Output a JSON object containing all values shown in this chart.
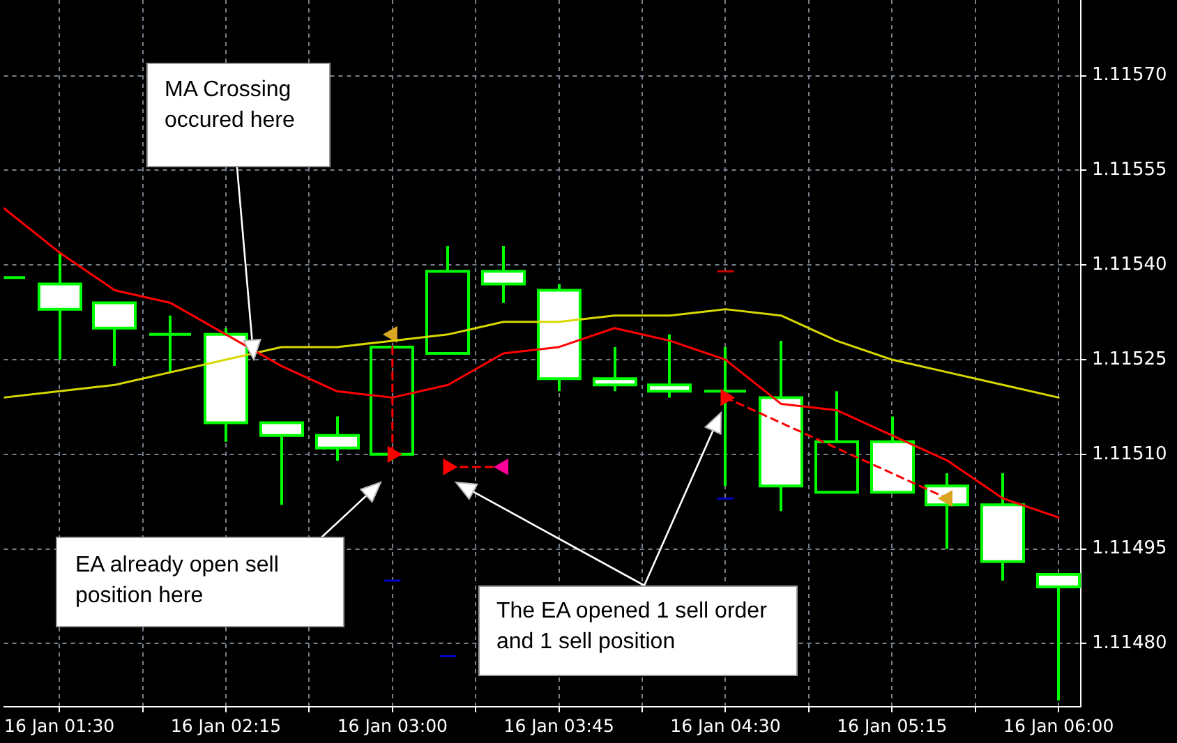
{
  "chart_data": {
    "type": "candlestick",
    "x": [
      "--01-16T01:15",
      "--01-16T01:30",
      "--01-16T01:45",
      "--01-16T02:00",
      "--01-16T02:15",
      "--01-16T02:30",
      "--01-16T02:45",
      "--01-16T03:00",
      "--01-16T03:15",
      "--01-16T03:30",
      "--01-16T03:45",
      "--01-16T04:00",
      "--01-16T04:15",
      "--01-16T04:30",
      "--01-16T04:45",
      "--01-16T05:00",
      "--01-16T05:15",
      "--01-16T05:30",
      "--01-16T05:45",
      "--01-16T06:00"
    ],
    "ohlc": [
      [
        1.11538,
        1.11538,
        1.11538,
        1.11538
      ],
      [
        1.11537,
        1.11542,
        1.11525,
        1.11533
      ],
      [
        1.11534,
        1.11534,
        1.11524,
        1.1153
      ],
      [
        1.11529,
        1.11532,
        1.11523,
        1.11529
      ],
      [
        1.11529,
        1.1153,
        1.11512,
        1.11515
      ],
      [
        1.11515,
        1.11515,
        1.11502,
        1.11513
      ],
      [
        1.11513,
        1.11516,
        1.11509,
        1.11511
      ],
      [
        1.1151,
        1.11527,
        1.11509,
        1.11527
      ],
      [
        1.11526,
        1.11543,
        1.11526,
        1.11539
      ],
      [
        1.11539,
        1.11543,
        1.11534,
        1.11537
      ],
      [
        1.11536,
        1.11537,
        1.1152,
        1.11522
      ],
      [
        1.11522,
        1.11527,
        1.1152,
        1.11521
      ],
      [
        1.11521,
        1.11529,
        1.11519,
        1.1152
      ],
      [
        1.1152,
        1.11527,
        1.11505,
        1.1152
      ],
      [
        1.11519,
        1.11528,
        1.11501,
        1.11505
      ],
      [
        1.11504,
        1.1152,
        1.11504,
        1.11512
      ],
      [
        1.11512,
        1.11516,
        1.11504,
        1.11504
      ],
      [
        1.11505,
        1.11507,
        1.11495,
        1.11502
      ],
      [
        1.11502,
        1.11507,
        1.1149,
        1.11493
      ],
      [
        1.11491,
        1.11491,
        1.11471,
        1.11489
      ]
    ],
    "color": "#00ff00",
    "colors": [
      null,
      "#ffffff",
      "#ffffff",
      null,
      "#ffffff",
      "#ffffff",
      "#ffffff",
      null,
      null,
      "#ffffff",
      "#ffffff",
      "#ffffff",
      "#ffffff",
      null,
      "#ffffff",
      null,
      "#ffffff",
      "#ffffff",
      "#ffffff",
      "#ffffff"
    ],
    "series": [
      {
        "type": "line",
        "color": "#ff0000",
        "marker": "none",
        "line_style": "solid",
        "x": [
          "--01-16T01:15",
          "--01-16T01:30",
          "--01-16T01:45",
          "--01-16T02:00",
          "--01-16T02:15",
          "--01-16T02:30",
          "--01-16T02:45",
          "--01-16T03:00",
          "--01-16T03:15",
          "--01-16T03:30",
          "--01-16T03:45",
          "--01-16T04:00",
          "--01-16T04:15",
          "--01-16T04:30",
          "--01-16T04:45",
          "--01-16T05:00",
          "--01-16T05:15",
          "--01-16T05:30",
          "--01-16T05:45",
          "--01-16T06:00"
        ],
        "values": [
          1.11549,
          1.11542,
          1.11536,
          1.11534,
          1.11529,
          1.11524,
          1.1152,
          1.11519,
          1.11521,
          1.11526,
          1.11527,
          1.1153,
          1.11528,
          1.11525,
          1.11518,
          1.11517,
          1.11513,
          1.11509,
          1.11503,
          1.115
        ]
      },
      {
        "type": "line",
        "color": "#d8d800",
        "marker": "none",
        "line_style": "solid",
        "x": [
          "--01-16T01:15",
          "--01-16T01:30",
          "--01-16T01:45",
          "--01-16T02:00",
          "--01-16T02:15",
          "--01-16T02:30",
          "--01-16T02:45",
          "--01-16T03:00",
          "--01-16T03:15",
          "--01-16T03:30",
          "--01-16T03:45",
          "--01-16T04:00",
          "--01-16T04:15",
          "--01-16T04:30",
          "--01-16T04:45",
          "--01-16T05:00",
          "--01-16T05:15",
          "--01-16T05:30",
          "--01-16T05:45",
          "--01-16T06:00"
        ],
        "values": [
          1.11519,
          1.1152,
          1.11521,
          1.11523,
          1.11525,
          1.11527,
          1.11527,
          1.11528,
          1.11529,
          1.11531,
          1.11531,
          1.11532,
          1.11532,
          1.11533,
          1.11532,
          1.11528,
          1.11525,
          1.11523,
          1.11521,
          1.11519
        ]
      },
      {
        "type": "line",
        "color": "#ff0000",
        "colors": [
          "#ff0000",
          "#daa520"
        ],
        "marker": "triangle",
        "line_style": "dashed",
        "x": [
          "--01-16T03:00",
          "--01-16T03:00"
        ],
        "values": [
          1.1151,
          1.11529
        ]
      },
      {
        "type": "line",
        "color": "#ff0000",
        "colors": [
          "#ff0000",
          "#ff0099"
        ],
        "marker": "triangle",
        "line_style": "dashed",
        "x": [
          "--01-16T03:15",
          "--01-16T03:30"
        ],
        "values": [
          1.11508,
          1.11508
        ]
      },
      {
        "type": "line",
        "color": "#ff0000",
        "colors": [
          "#ff0000",
          "#daa520"
        ],
        "marker": "triangle",
        "line_style": "dashed",
        "x": [
          "--01-16T04:30",
          "--01-16T05:30"
        ],
        "values": [
          1.11519,
          1.11503
        ]
      },
      {
        "type": "line",
        "color": "#0000c8",
        "marker": "none",
        "line_style": "solid",
        "x": [
          "--01-16T02:58",
          "--01-16T03:02"
        ],
        "values": [
          1.1149,
          1.1149
        ]
      },
      {
        "type": "line",
        "color": "#0000c8",
        "marker": "none",
        "line_style": "solid",
        "x": [
          "--01-16T03:13",
          "--01-16T03:17"
        ],
        "values": [
          1.11478,
          1.11478
        ]
      },
      {
        "type": "line",
        "color": "#0000c8",
        "marker": "none",
        "line_style": "solid",
        "x": [
          "--01-16T04:28",
          "--01-16T04:32"
        ],
        "values": [
          1.11503,
          1.11503
        ]
      },
      {
        "type": "line",
        "color": "#c80000",
        "marker": "none",
        "line_style": "solid",
        "x": [
          "--01-16T04:28",
          "--01-16T04:32"
        ],
        "values": [
          1.11539,
          1.11539
        ]
      }
    ],
    "xlim": [
      "--01-16T01:15",
      "--01-16T06:06"
    ],
    "ylim": [
      1.1147,
      1.11582
    ],
    "xticks": [
      {
        "value": "--01-16T01:30",
        "label": "16 Jan 01:30"
      },
      {
        "value": "--01-16T01:52:30",
        "label": null
      },
      {
        "value": "--01-16T02:15",
        "label": "16 Jan 02:15"
      },
      {
        "value": "--01-16T02:37:30",
        "label": null
      },
      {
        "value": "--01-16T03:00",
        "label": "16 Jan 03:00"
      },
      {
        "value": "--01-16T03:22:30",
        "label": null
      },
      {
        "value": "--01-16T03:45",
        "label": "16 Jan 03:45"
      },
      {
        "value": "--01-16T04:07:30",
        "label": null
      },
      {
        "value": "--01-16T04:30",
        "label": "16 Jan 04:30"
      },
      {
        "value": "--01-16T04:52:30",
        "label": null
      },
      {
        "value": "--01-16T05:15",
        "label": "16 Jan 05:15"
      },
      {
        "value": "--01-16T05:37:30",
        "label": null
      },
      {
        "value": "--01-16T06:00",
        "label": "16 Jan 06:00"
      }
    ],
    "yticks": [
      {
        "value": 1.1148,
        "label": "1.11480"
      },
      1.11495,
      {
        "value": 1.1151,
        "label": "1.11510"
      },
      1.11525,
      {
        "value": 1.1154,
        "label": "1.11540"
      },
      1.11555,
      {
        "value": 1.1157,
        "label": "1.11570"
      }
    ],
    "grid": true,
    "annotations": [
      "MA Crossing occured here",
      "EA already open sell position here",
      "The EA opened 1 sell order",
      "and 1 sell position"
    ]
  }
}
